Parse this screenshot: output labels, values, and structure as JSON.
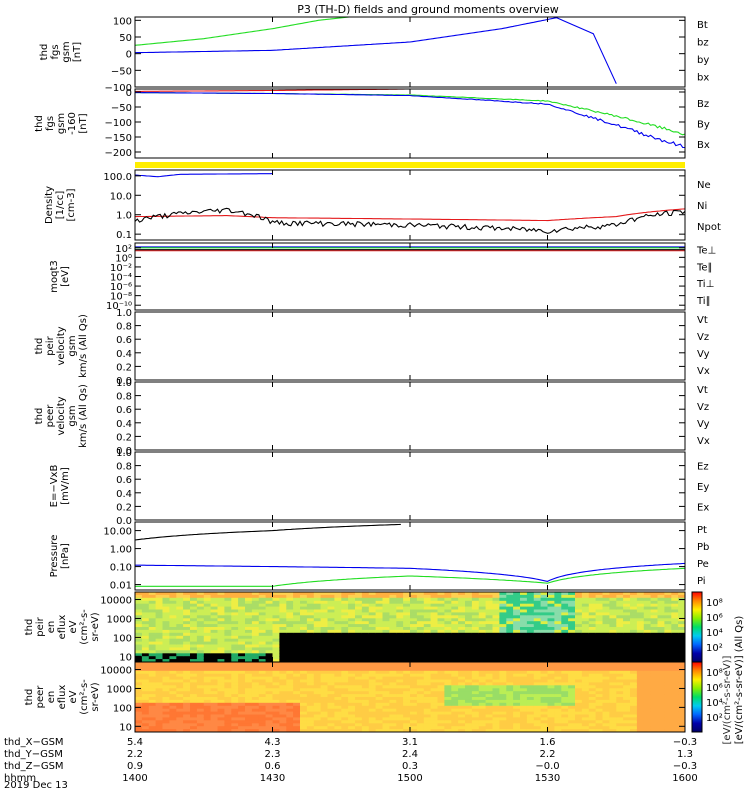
{
  "title": "P3 (TH-D) fields and ground moments overview",
  "date_label": "2019 Dec 13",
  "colors": {
    "black": "#000000",
    "red": "#e41a1c",
    "green": "#22dd22",
    "blue": "#0000ee",
    "yellow": "#ffee00"
  },
  "panels": [
    {
      "id": "p1",
      "ylabel": [
        "thd",
        "fgs",
        "gsm",
        "[nT]"
      ],
      "ticks": [
        "100",
        "50",
        "0",
        "−50",
        "−100"
      ],
      "tickvals": [
        100,
        50,
        0,
        -50,
        -100
      ],
      "ylim": [
        -100,
        110
      ],
      "log": false,
      "legend": [
        {
          "label": "Bt",
          "color": "#000000"
        },
        {
          "label": "bz",
          "color": "#e41a1c"
        },
        {
          "label": "by",
          "color": "#22dd22"
        },
        {
          "label": "bx",
          "color": "#0000ee"
        }
      ]
    },
    {
      "id": "p2",
      "ylabel": [
        "thd",
        "fgs",
        "gsm",
        "-160",
        "[nT]"
      ],
      "ticks": [
        "0",
        "−50",
        "−100",
        "−150",
        "−200"
      ],
      "tickvals": [
        0,
        -50,
        -100,
        -150,
        -200
      ],
      "ylim": [
        -220,
        10
      ],
      "log": false,
      "legend": [
        {
          "label": "Bz",
          "color": "#e41a1c"
        },
        {
          "label": "By",
          "color": "#22dd22"
        },
        {
          "label": "Bx",
          "color": "#0000ee"
        }
      ]
    },
    {
      "id": "p3",
      "ylabel": [
        "Density",
        "[1/cc]",
        "[cm-3]"
      ],
      "ticks": [
        "100.0",
        "10.0",
        "1.0",
        "0.1"
      ],
      "tickvals": [
        100,
        10,
        1,
        0.1
      ],
      "ylim": [
        0.05,
        200
      ],
      "log": true,
      "legend": [
        {
          "label": "Ne",
          "color": "#e41a1c"
        },
        {
          "label": "Ni",
          "color": "#000000"
        },
        {
          "label": "Npot",
          "color": "#0000ee"
        }
      ]
    },
    {
      "id": "p4",
      "ylabel": [
        "moqt3",
        "[eV]"
      ],
      "ticks": [
        "10²",
        "10⁰",
        "10⁻²",
        "10⁻⁴",
        "10⁻⁶",
        "10⁻⁸",
        "10⁻¹⁰"
      ],
      "tickvals": [
        100,
        1,
        0.01,
        0.0001,
        1e-06,
        1e-08,
        1e-10
      ],
      "ylim": [
        1e-11,
        1000
      ],
      "log": true,
      "legend": [
        {
          "label": "Te⊥",
          "color": "#e41a1c"
        },
        {
          "label": "Te∥",
          "color": "#000000"
        },
        {
          "label": "Ti⊥",
          "color": "#0000ee"
        },
        {
          "label": "Ti∥",
          "color": "#22dd22"
        }
      ]
    },
    {
      "id": "p5",
      "ylabel": [
        "thd",
        "peir",
        "velocity",
        "gsm",
        "km/s (All Qs)"
      ],
      "ticks": [
        "1.0",
        "0.8",
        "0.6",
        "0.4",
        "0.2",
        "0.0"
      ],
      "tickvals": [
        1,
        0.8,
        0.6,
        0.4,
        0.2,
        0
      ],
      "ylim": [
        0,
        1
      ],
      "log": false,
      "legend": [
        {
          "label": "Vt",
          "color": "#000000"
        },
        {
          "label": "Vz",
          "color": "#e41a1c"
        },
        {
          "label": "Vy",
          "color": "#22dd22"
        },
        {
          "label": "Vx",
          "color": "#0000ee"
        }
      ]
    },
    {
      "id": "p6",
      "ylabel": [
        "thd",
        "peer",
        "velocity",
        "gsm",
        "km/s (All Qs)"
      ],
      "ticks": [
        "1.0",
        "0.8",
        "0.6",
        "0.4",
        "0.2",
        "0.0"
      ],
      "tickvals": [
        1,
        0.8,
        0.6,
        0.4,
        0.2,
        0
      ],
      "ylim": [
        0,
        1
      ],
      "log": false,
      "legend": [
        {
          "label": "Vt",
          "color": "#000000"
        },
        {
          "label": "Vz",
          "color": "#e41a1c"
        },
        {
          "label": "Vy",
          "color": "#22dd22"
        },
        {
          "label": "Vx",
          "color": "#0000ee"
        }
      ]
    },
    {
      "id": "p7",
      "ylabel": [
        "E=−VxB",
        "[mV/m]"
      ],
      "ticks": [
        "1.0",
        "0.8",
        "0.6",
        "0.4",
        "0.2",
        "0.0"
      ],
      "tickvals": [
        1,
        0.8,
        0.6,
        0.4,
        0.2,
        0
      ],
      "ylim": [
        0,
        1
      ],
      "log": false,
      "legend": [
        {
          "label": "Ez",
          "color": "#e41a1c"
        },
        {
          "label": "Ey",
          "color": "#22dd22"
        },
        {
          "label": "Ex",
          "color": "#0000ee"
        }
      ]
    },
    {
      "id": "p8",
      "ylabel": [
        "Pressure",
        "[nPa]"
      ],
      "ticks": [
        "10.00",
        "1.00",
        "0.10",
        "0.01"
      ],
      "tickvals": [
        10,
        1,
        0.1,
        0.01
      ],
      "ylim": [
        0.005,
        30
      ],
      "log": true,
      "legend": [
        {
          "label": "Pt",
          "color": "#000000"
        },
        {
          "label": "Pb",
          "color": "#e41a1c"
        },
        {
          "label": "Pe",
          "color": "#22dd22"
        },
        {
          "label": "Pi",
          "color": "#0000ee"
        }
      ]
    },
    {
      "id": "p9",
      "ylabel": [
        "thd",
        "peir",
        "en",
        "eflux",
        "eV",
        "(cm²-s-",
        "sr-eV)"
      ],
      "ticks": [
        "10000",
        "1000",
        "100",
        "10"
      ],
      "tickvals": [
        10000,
        1000,
        100,
        10
      ],
      "ylim": [
        5,
        25000
      ],
      "log": true,
      "legend": []
    },
    {
      "id": "p10",
      "ylabel": [
        "thd",
        "peer",
        "en",
        "eflux",
        "eV",
        "(cm²-s-",
        "sr-eV)"
      ],
      "ticks": [
        "10000",
        "1000",
        "100",
        "10"
      ],
      "tickvals": [
        10000,
        1000,
        100,
        10
      ],
      "ylim": [
        5,
        25000
      ],
      "log": true,
      "legend": []
    }
  ],
  "colorbar": {
    "ticks": [
      "10⁸",
      "10⁶",
      "10⁴",
      "10²"
    ],
    "label": "[eV/(cm²-s-sr-eV)] (All Qs)",
    "ticks2": [
      "10⁸",
      "10⁶",
      "10⁴",
      "10²"
    ],
    "label2": "[eV/(cm²-s-sr-eV)]"
  },
  "xaxis": {
    "row_labels": [
      "thd_X−GSM",
      "thd_Y−GSM",
      "thd_Z−GSM",
      "hhmm"
    ],
    "columns": [
      {
        "x": "1400",
        "X": "5.4",
        "Y": "2.2",
        "Z": "0.9"
      },
      {
        "x": "1430",
        "X": "4.3",
        "Y": "2.3",
        "Z": "0.6"
      },
      {
        "x": "1500",
        "X": "3.1",
        "Y": "2.4",
        "Z": "0.3"
      },
      {
        "x": "1530",
        "X": "1.6",
        "Y": "2.2",
        "Z": "−0.0"
      },
      {
        "x": "1600",
        "X": "−0.3",
        "Y": "1.3",
        "Z": "−0.3"
      }
    ]
  },
  "chart_data": {
    "type": "line",
    "title": "P3 (TH-D) fields and ground moments overview",
    "x_unit": "hhmm",
    "x_ticks": [
      "1400",
      "1430",
      "1500",
      "1530",
      "1600"
    ],
    "panels": [
      {
        "name": "thd fgs gsm [nT]",
        "ylim": [
          -100,
          110
        ],
        "series": [
          {
            "name": "by",
            "x": [
              "1400",
              "1415",
              "1430",
              "1440",
              "1450"
            ],
            "y": [
              25,
              45,
              75,
              100,
              115
            ]
          },
          {
            "name": "bx",
            "x": [
              "1400",
              "1430",
              "1500",
              "1520",
              "1532",
              "1540",
              "1545"
            ],
            "y": [
              3,
              10,
              35,
              75,
              108,
              60,
              -90
            ]
          }
        ]
      },
      {
        "name": "thd fgs gsm -160 [nT]",
        "ylim": [
          -220,
          10
        ],
        "series": [
          {
            "name": "Bz",
            "x": [
              "1400",
              "1430",
              "1500",
              "1530",
              "1545",
              "1600"
            ],
            "y": [
              2,
              5,
              10,
              15,
              25,
              10
            ]
          },
          {
            "name": "By",
            "x": [
              "1400",
              "1430",
              "1500",
              "1530",
              "1545",
              "1600"
            ],
            "y": [
              -2,
              -5,
              -10,
              -30,
              -80,
              -140
            ]
          },
          {
            "name": "Bx",
            "x": [
              "1400",
              "1430",
              "1500",
              "1530",
              "1545",
              "1600"
            ],
            "y": [
              -2,
              -5,
              -12,
              -40,
              -110,
              -185
            ]
          }
        ]
      },
      {
        "name": "Density [1/cc]",
        "ylim": [
          0.05,
          200
        ],
        "log": true,
        "series": [
          {
            "name": "Ne",
            "x": [
              "1400",
              "1420",
              "1430",
              "1500",
              "1530",
              "1545",
              "1600"
            ],
            "y": [
              0.8,
              0.9,
              0.7,
              0.6,
              0.5,
              0.8,
              2
            ]
          },
          {
            "name": "Ni",
            "x": [
              "1400",
              "1420",
              "1430",
              "1500",
              "1530",
              "1545",
              "1600"
            ],
            "y": [
              0.5,
              1.8,
              0.4,
              0.3,
              0.15,
              0.3,
              1.5
            ]
          },
          {
            "name": "Npot",
            "x": [
              "1400",
              "1405",
              "1410",
              "1430"
            ],
            "y": [
              110,
              90,
              120,
              130
            ]
          }
        ]
      },
      {
        "name": "moqt3 [eV]",
        "ylim": [
          1e-11,
          1000
        ],
        "log": true,
        "series": [
          {
            "name": "Te⊥",
            "x": [
              "1400",
              "1600"
            ],
            "y": [
              25,
              25
            ]
          },
          {
            "name": "Te∥",
            "x": [
              "1400",
              "1600"
            ],
            "y": [
              40,
              40
            ]
          },
          {
            "name": "Ti⊥",
            "x": [
              "1400",
              "1600"
            ],
            "y": [
              150,
              150
            ]
          },
          {
            "name": "Ti∥",
            "x": [
              "1400",
              "1600"
            ],
            "y": [
              100,
              100
            ]
          }
        ]
      },
      {
        "name": "Pressure [nPa]",
        "ylim": [
          0.005,
          30
        ],
        "log": true,
        "series": [
          {
            "name": "Pt",
            "x": [
              "1400",
              "1430",
              "1458"
            ],
            "y": [
              3,
              10,
              22
            ]
          },
          {
            "name": "Pe",
            "x": [
              "1400",
              "1430",
              "1500",
              "1530",
              "1600"
            ],
            "y": [
              0.008,
              0.008,
              0.03,
              0.012,
              0.08
            ]
          },
          {
            "name": "Pi",
            "x": [
              "1400",
              "1430",
              "1500",
              "1530",
              "1600"
            ],
            "y": [
              0.12,
              0.1,
              0.08,
              0.015,
              0.15
            ]
          }
        ]
      }
    ]
  }
}
